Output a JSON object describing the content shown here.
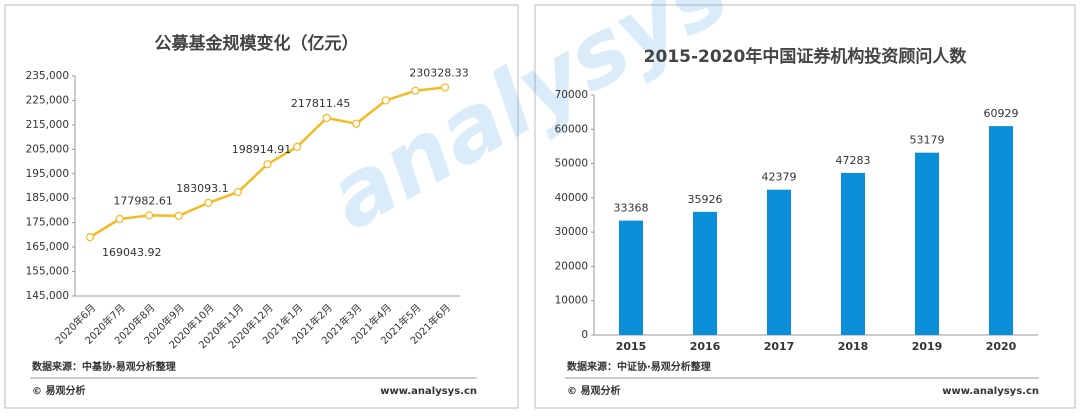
{
  "chart_data": [
    {
      "type": "line",
      "title": "公募基金规模变化（亿元）",
      "categories": [
        "2020年6月",
        "2020年7月",
        "2020年8月",
        "2020年9月",
        "2020年10月",
        "2020年11月",
        "2020年12月",
        "2021年1月",
        "2021年2月",
        "2021年3月",
        "2021年4月",
        "2021年5月",
        "2021年6月"
      ],
      "values": [
        169043.92,
        176500,
        177982.61,
        177800,
        183093.1,
        187500,
        198914.91,
        206000,
        217811.45,
        215500,
        225000,
        229000,
        230328.33
      ],
      "value_labels": [
        "169043.92",
        null,
        "177982.61",
        null,
        "183093.1",
        null,
        "198914.91",
        null,
        "217811.45",
        null,
        null,
        null,
        "230328.33"
      ],
      "color": "#f5b922",
      "ylim": [
        145000,
        235000
      ],
      "yticks": [
        {
          "value": 145000,
          "label": "145,000"
        },
        {
          "value": 155000,
          "label": "155,000"
        },
        {
          "value": 165000,
          "label": "165,000"
        },
        {
          "value": 175000,
          "label": "175,000"
        },
        {
          "value": 185000,
          "label": "185,000"
        },
        {
          "value": 195000,
          "label": "195,000"
        },
        {
          "value": 205000,
          "label": "205,000"
        },
        {
          "value": 215000,
          "label": "215,000"
        },
        {
          "value": 225000,
          "label": "225,000"
        },
        {
          "value": 235000,
          "label": "235,000"
        }
      ],
      "source": "数据来源：中基协·易观分析整理",
      "copyright": "© 易观分析",
      "website": "www.analysys.cn"
    },
    {
      "type": "bar",
      "title": "2015-2020年中国证券机构投资顾问人数",
      "categories": [
        "2015",
        "2016",
        "2017",
        "2018",
        "2019",
        "2020"
      ],
      "values": [
        33368,
        35926,
        42379,
        47283,
        53179,
        60929
      ],
      "color": "#0a8fd8",
      "ylim": [
        0,
        70000
      ],
      "yticks": [
        0,
        10000,
        20000,
        30000,
        40000,
        50000,
        60000,
        70000
      ],
      "source": "数据来源：中证协·易观分析整理",
      "copyright": "© 易观分析",
      "website": "www.analysys.cn"
    }
  ]
}
